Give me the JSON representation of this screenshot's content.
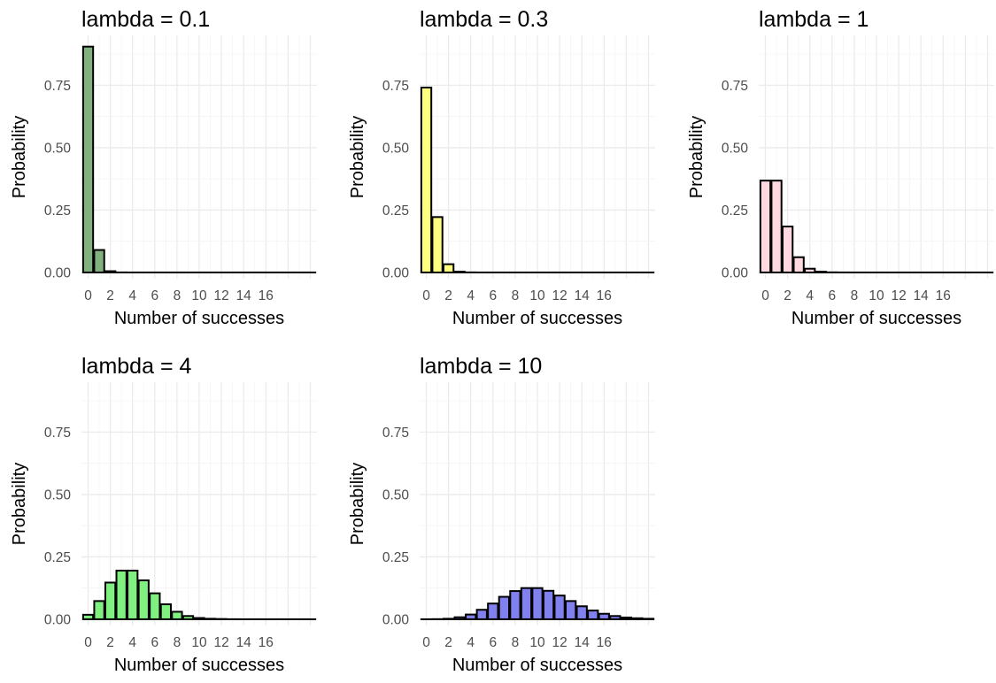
{
  "chart_data": [
    {
      "type": "bar",
      "title": "lambda = 0.1",
      "xlabel": "Number of successes",
      "ylabel": "Probability",
      "fill": "#81b27e",
      "x": [
        0,
        1,
        2,
        3,
        4,
        5,
        6,
        7,
        8,
        9,
        10,
        11,
        12,
        13,
        14,
        15,
        16,
        17,
        18,
        19,
        20
      ],
      "values": [
        0.905,
        0.09,
        0.005,
        0.0002,
        0,
        0,
        0,
        0,
        0,
        0,
        0,
        0,
        0,
        0,
        0,
        0,
        0,
        0,
        0,
        0,
        0
      ],
      "xticks": [
        "0",
        "2",
        "4",
        "6",
        "8",
        "10",
        "12",
        "14",
        "16"
      ],
      "yticks": [
        "0.00",
        "0.25",
        "0.50",
        "0.75"
      ],
      "ylim": [
        0,
        0.95
      ],
      "grid": true
    },
    {
      "type": "bar",
      "title": "lambda = 0.3",
      "xlabel": "Number of successes",
      "ylabel": "Probability",
      "fill": "#ffff80",
      "x": [
        0,
        1,
        2,
        3,
        4,
        5,
        6,
        7,
        8,
        9,
        10,
        11,
        12,
        13,
        14,
        15,
        16,
        17,
        18,
        19,
        20
      ],
      "values": [
        0.741,
        0.222,
        0.033,
        0.003,
        0.0003,
        0,
        0,
        0,
        0,
        0,
        0,
        0,
        0,
        0,
        0,
        0,
        0,
        0,
        0,
        0,
        0
      ],
      "xticks": [
        "0",
        "2",
        "4",
        "6",
        "8",
        "10",
        "12",
        "14",
        "16"
      ],
      "yticks": [
        "0.00",
        "0.25",
        "0.50",
        "0.75"
      ],
      "ylim": [
        0,
        0.95
      ],
      "grid": true
    },
    {
      "type": "bar",
      "title": "lambda = 1",
      "xlabel": "Number of successes",
      "ylabel": "Probability",
      "fill": "#ffd9df",
      "x": [
        0,
        1,
        2,
        3,
        4,
        5,
        6,
        7,
        8,
        9,
        10,
        11,
        12,
        13,
        14,
        15,
        16,
        17,
        18,
        19,
        20
      ],
      "values": [
        0.368,
        0.368,
        0.184,
        0.061,
        0.015,
        0.003,
        0.0005,
        0.0001,
        0,
        0,
        0,
        0,
        0,
        0,
        0,
        0,
        0,
        0,
        0,
        0,
        0
      ],
      "xticks": [
        "0",
        "2",
        "4",
        "6",
        "8",
        "10",
        "12",
        "14",
        "16"
      ],
      "yticks": [
        "0.00",
        "0.25",
        "0.50",
        "0.75"
      ],
      "ylim": [
        0,
        0.95
      ],
      "grid": true
    },
    {
      "type": "bar",
      "title": "lambda = 4",
      "xlabel": "Number of successes",
      "ylabel": "Probability",
      "fill": "#80f080",
      "x": [
        0,
        1,
        2,
        3,
        4,
        5,
        6,
        7,
        8,
        9,
        10,
        11,
        12,
        13,
        14,
        15,
        16,
        17,
        18,
        19,
        20
      ],
      "values": [
        0.018,
        0.073,
        0.147,
        0.195,
        0.195,
        0.156,
        0.104,
        0.06,
        0.03,
        0.013,
        0.005,
        0.002,
        0.001,
        0.0002,
        0,
        0,
        0,
        0,
        0,
        0,
        0
      ],
      "xticks": [
        "0",
        "2",
        "4",
        "6",
        "8",
        "10",
        "12",
        "14",
        "16"
      ],
      "yticks": [
        "0.00",
        "0.25",
        "0.50",
        "0.75"
      ],
      "ylim": [
        0,
        0.95
      ],
      "grid": true
    },
    {
      "type": "bar",
      "title": "lambda = 10",
      "xlabel": "Number of successes",
      "ylabel": "Probability",
      "fill": "#8080ef",
      "x": [
        0,
        1,
        2,
        3,
        4,
        5,
        6,
        7,
        8,
        9,
        10,
        11,
        12,
        13,
        14,
        15,
        16,
        17,
        18,
        19,
        20
      ],
      "values": [
        5e-05,
        0.0005,
        0.002,
        0.008,
        0.019,
        0.038,
        0.063,
        0.09,
        0.113,
        0.125,
        0.125,
        0.114,
        0.095,
        0.073,
        0.052,
        0.035,
        0.022,
        0.013,
        0.007,
        0.004,
        0.002
      ],
      "xticks": [
        "0",
        "2",
        "4",
        "6",
        "8",
        "10",
        "12",
        "14",
        "16"
      ],
      "yticks": [
        "0.00",
        "0.25",
        "0.50",
        "0.75"
      ],
      "ylim": [
        0,
        0.95
      ],
      "grid": true
    }
  ]
}
